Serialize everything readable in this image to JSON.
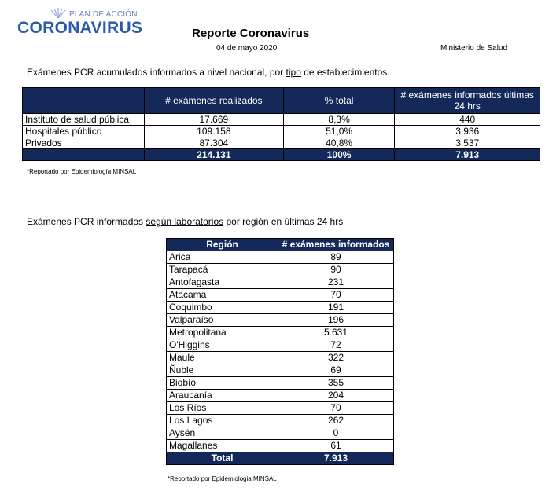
{
  "logo": {
    "small": "PLAN DE ACCIÓN",
    "big": "CORONAVIRUS"
  },
  "report": {
    "title": "Reporte Coronavirus",
    "date": "04 de mayo 2020",
    "ministry": "Ministerio de Salud"
  },
  "section1": {
    "heading_pre": "Exámenes PCR acumulados informados a nivel nacional, por ",
    "heading_u": "tipo",
    "heading_post": " de establecimientos.",
    "columns": [
      "",
      "# exámenes realizados",
      "% total",
      "# exámenes informados últimas 24 hrs"
    ],
    "rows": [
      [
        "Instituto de salud pública",
        "17.669",
        "8,3%",
        "440"
      ],
      [
        "Hospitales público",
        "109.158",
        "51,0%",
        "3.936"
      ],
      [
        "Privados",
        "87.304",
        "40,8%",
        "3.537"
      ]
    ],
    "total": [
      "",
      "214.131",
      "100%",
      "7.913"
    ],
    "note": "*Reportado por Epidemiología MINSAL"
  },
  "section2": {
    "heading_pre": "Exámenes PCR informados ",
    "heading_u": "según laboratorios",
    "heading_post": " por región en últimas 24 hrs",
    "columns": [
      "Región",
      "# exámenes informados"
    ],
    "rows": [
      [
        "Arica",
        "89"
      ],
      [
        "Tarapacá",
        "90"
      ],
      [
        "Antofagasta",
        "231"
      ],
      [
        "Atacama",
        "70"
      ],
      [
        "Coquimbo",
        "191"
      ],
      [
        "Valparaíso",
        "196"
      ],
      [
        "Metropolitana",
        "5.631"
      ],
      [
        "O'Higgins",
        "72"
      ],
      [
        "Maule",
        "322"
      ],
      [
        "Ñuble",
        "69"
      ],
      [
        "Biobío",
        "355"
      ],
      [
        "Araucanía",
        "204"
      ],
      [
        "Los Ríos",
        "70"
      ],
      [
        "Los Lagos",
        "262"
      ],
      [
        "Aysén",
        "0"
      ],
      [
        "Magallanes",
        "61"
      ]
    ],
    "total": [
      "Total",
      "7.913"
    ],
    "note": "*Reportado por Epidemiologia MINSAL"
  },
  "colors": {
    "header_bg": "#14285a",
    "logo_blue": "#2a5aa8"
  }
}
